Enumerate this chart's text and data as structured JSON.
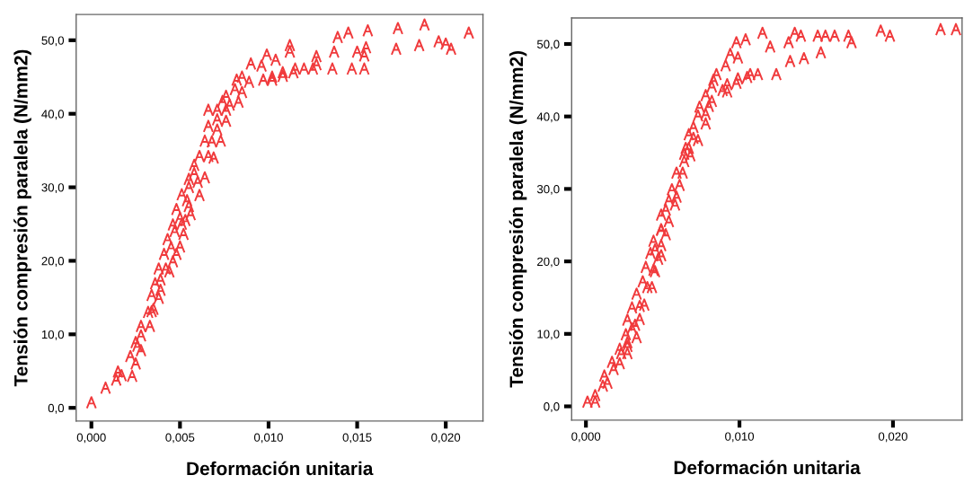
{
  "chart_data": [
    {
      "type": "scatter",
      "xlabel": "Deformación unitaria",
      "ylabel": "Tensión compresión paralela (N/mm2)",
      "xlim": [
        -0.00086,
        0.0221
      ],
      "ylim": [
        -1.8,
        53.5
      ],
      "xticks": [
        {
          "value": 0,
          "label": "0,000"
        },
        {
          "value": 0.005,
          "label": "0,005"
        },
        {
          "value": 0.01,
          "label": "0,010"
        },
        {
          "value": 0.015,
          "label": "0,015"
        },
        {
          "value": 0.02,
          "label": "0,020"
        }
      ],
      "yticks": [
        {
          "value": 0,
          "label": "0,0"
        },
        {
          "value": 10,
          "label": "10,0"
        },
        {
          "value": 20,
          "label": "20,0"
        },
        {
          "value": 30,
          "label": "30,0"
        },
        {
          "value": 40,
          "label": "40,0"
        },
        {
          "value": 50,
          "label": "50,0"
        }
      ],
      "grid": false,
      "legend": false,
      "series": [
        {
          "color": "#f03a3c",
          "x": [
            0.0213,
            0.0188,
            0.0173,
            0.0156,
            0.0145,
            0.0139,
            0.0196,
            0.02,
            0.0203,
            0.0185,
            0.0172,
            0.0155,
            0.015,
            0.0154,
            0.0137,
            0.0127,
            0.0127,
            0.0154,
            0.0147,
            0.0136,
            0.0125,
            0.012,
            0.0115,
            0.0114,
            0.0108,
            0.0108,
            0.0102,
            0.0102,
            0.0097,
            0.0089,
            0.0112,
            0.0112,
            0.0099,
            0.0104,
            0.009,
            0.0096,
            0.0085,
            0.0082,
            0.0081,
            0.0085,
            0.0076,
            0.0074,
            0.0083,
            0.0078,
            0.0066,
            0.0071,
            0.0076,
            0.0071,
            0.0076,
            0.0066,
            0.0071,
            0.0064,
            0.0073,
            0.0068,
            0.0061,
            0.0066,
            0.0069,
            0.0058,
            0.0058,
            0.0055,
            0.0064,
            0.006,
            0.0055,
            0.0051,
            0.0061,
            0.0054,
            0.0055,
            0.0048,
            0.0056,
            0.005,
            0.0053,
            0.0046,
            0.0051,
            0.0047,
            0.0052,
            0.0043,
            0.0045,
            0.005,
            0.0041,
            0.0048,
            0.0046,
            0.0038,
            0.0042,
            0.0044,
            0.0039,
            0.0036,
            0.0039,
            0.0034,
            0.0038,
            0.0035,
            0.0032,
            0.0034,
            0.0028,
            0.0033,
            0.0028,
            0.0025,
            0.0026,
            0.0028,
            0.0022,
            0.0025,
            0.0015,
            0.0017,
            0.0023,
            0.0014,
            0.0008,
            0.0
          ],
          "values": [
            51.0,
            52.1,
            51.6,
            51.3,
            51.0,
            50.4,
            49.8,
            49.5,
            48.8,
            49.3,
            48.8,
            49.0,
            48.4,
            47.9,
            48.4,
            47.8,
            46.7,
            46.1,
            46.1,
            46.1,
            46.1,
            46.1,
            46.1,
            45.6,
            45.6,
            45.1,
            45.0,
            44.6,
            44.6,
            44.3,
            49.3,
            48.4,
            48.0,
            47.3,
            46.8,
            46.5,
            45.0,
            44.6,
            43.3,
            42.9,
            42.4,
            41.7,
            41.6,
            41.2,
            40.5,
            40.5,
            40.5,
            39.2,
            39.0,
            38.3,
            37.8,
            36.3,
            36.3,
            36.2,
            34.2,
            34.2,
            34.0,
            33.0,
            31.9,
            31.1,
            31.3,
            30.7,
            30.0,
            29.0,
            28.9,
            28.2,
            27.4,
            27.0,
            26.3,
            25.8,
            25.5,
            24.9,
            25.0,
            24.0,
            23.6,
            22.9,
            21.8,
            21.9,
            20.9,
            20.9,
            19.9,
            18.9,
            18.9,
            18.5,
            17.4,
            16.9,
            16.0,
            15.3,
            14.9,
            13.4,
            13.0,
            13.1,
            11.1,
            11.1,
            9.8,
            8.9,
            8.4,
            7.8,
            7.0,
            6.0,
            4.9,
            4.4,
            4.3,
            3.8,
            2.7,
            0.7
          ]
        }
      ]
    },
    {
      "type": "scatter",
      "xlabel": "Deformación unitaria",
      "ylabel": "Tensión compresión paralela (N/mm2)",
      "xlim": [
        -0.00093,
        0.0245
      ],
      "ylim": [
        -1.9,
        53.6
      ],
      "xticks": [
        {
          "value": 0,
          "label": "0,000"
        },
        {
          "value": 0.01,
          "label": "0,010"
        },
        {
          "value": 0.02,
          "label": "0,020"
        }
      ],
      "yticks": [
        {
          "value": 0,
          "label": "0,0"
        },
        {
          "value": 10,
          "label": "10,0"
        },
        {
          "value": 20,
          "label": "20,0"
        },
        {
          "value": 30,
          "label": "30,0"
        },
        {
          "value": 40,
          "label": "40,0"
        },
        {
          "value": 50,
          "label": "50,0"
        }
      ],
      "grid": false,
      "legend": false,
      "series": [
        {
          "color": "#f03a3c",
          "x": [
            0.0231,
            0.0241,
            0.0192,
            0.0198,
            0.0115,
            0.0136,
            0.014,
            0.0151,
            0.0156,
            0.0162,
            0.0171,
            0.0173,
            0.0132,
            0.012,
            0.0104,
            0.0098,
            0.0153,
            0.0142,
            0.0133,
            0.0094,
            0.0099,
            0.0091,
            0.0124,
            0.0112,
            0.0107,
            0.0105,
            0.0099,
            0.0098,
            0.0092,
            0.0089,
            0.0092,
            0.0085,
            0.0083,
            0.0082,
            0.0078,
            0.0082,
            0.0074,
            0.008,
            0.0073,
            0.0078,
            0.0078,
            0.007,
            0.0067,
            0.007,
            0.0073,
            0.0065,
            0.0067,
            0.0064,
            0.0068,
            0.0064,
            0.0059,
            0.0063,
            0.0061,
            0.0056,
            0.0059,
            0.0054,
            0.0058,
            0.0052,
            0.0049,
            0.0054,
            0.0049,
            0.0049,
            0.0052,
            0.0044,
            0.0049,
            0.0045,
            0.0042,
            0.0049,
            0.0047,
            0.0039,
            0.0044,
            0.0045,
            0.0037,
            0.004,
            0.0043,
            0.0033,
            0.003,
            0.0035,
            0.0038,
            0.0027,
            0.0035,
            0.0032,
            0.003,
            0.0026,
            0.0033,
            0.0027,
            0.0027,
            0.0022,
            0.0023,
            0.0027,
            0.0017,
            0.0022,
            0.0018,
            0.0012,
            0.0014,
            0.0011,
            0.0006,
            0.0001,
            0.0006
          ],
          "values": [
            52.0,
            52.0,
            51.8,
            51.1,
            51.5,
            51.5,
            51.1,
            51.1,
            51.1,
            51.1,
            51.1,
            50.2,
            50.2,
            49.6,
            50.6,
            50.2,
            48.8,
            48.0,
            47.6,
            48.6,
            48.1,
            47.0,
            45.8,
            45.8,
            45.8,
            45.4,
            45.2,
            44.6,
            44.4,
            43.6,
            43.4,
            45.8,
            45.0,
            44.1,
            42.9,
            42.1,
            41.3,
            41.4,
            40.1,
            40.3,
            39.0,
            38.5,
            37.5,
            37.0,
            36.7,
            35.6,
            35.6,
            34.8,
            34.6,
            33.8,
            32.2,
            32.2,
            30.5,
            29.9,
            28.9,
            28.4,
            27.8,
            27.1,
            26.4,
            25.5,
            24.4,
            24.3,
            23.7,
            22.8,
            22.2,
            21.6,
            21.1,
            20.8,
            20.3,
            19.2,
            18.8,
            18.6,
            17.2,
            16.4,
            16.4,
            15.5,
            13.6,
            13.8,
            14.0,
            11.9,
            12.0,
            11.2,
            10.7,
            9.9,
            9.5,
            8.8,
            8.3,
            7.9,
            7.3,
            7.3,
            6.1,
            5.9,
            5.1,
            4.2,
            3.2,
            2.8,
            1.5,
            0.6,
            0.6
          ]
        }
      ]
    }
  ]
}
